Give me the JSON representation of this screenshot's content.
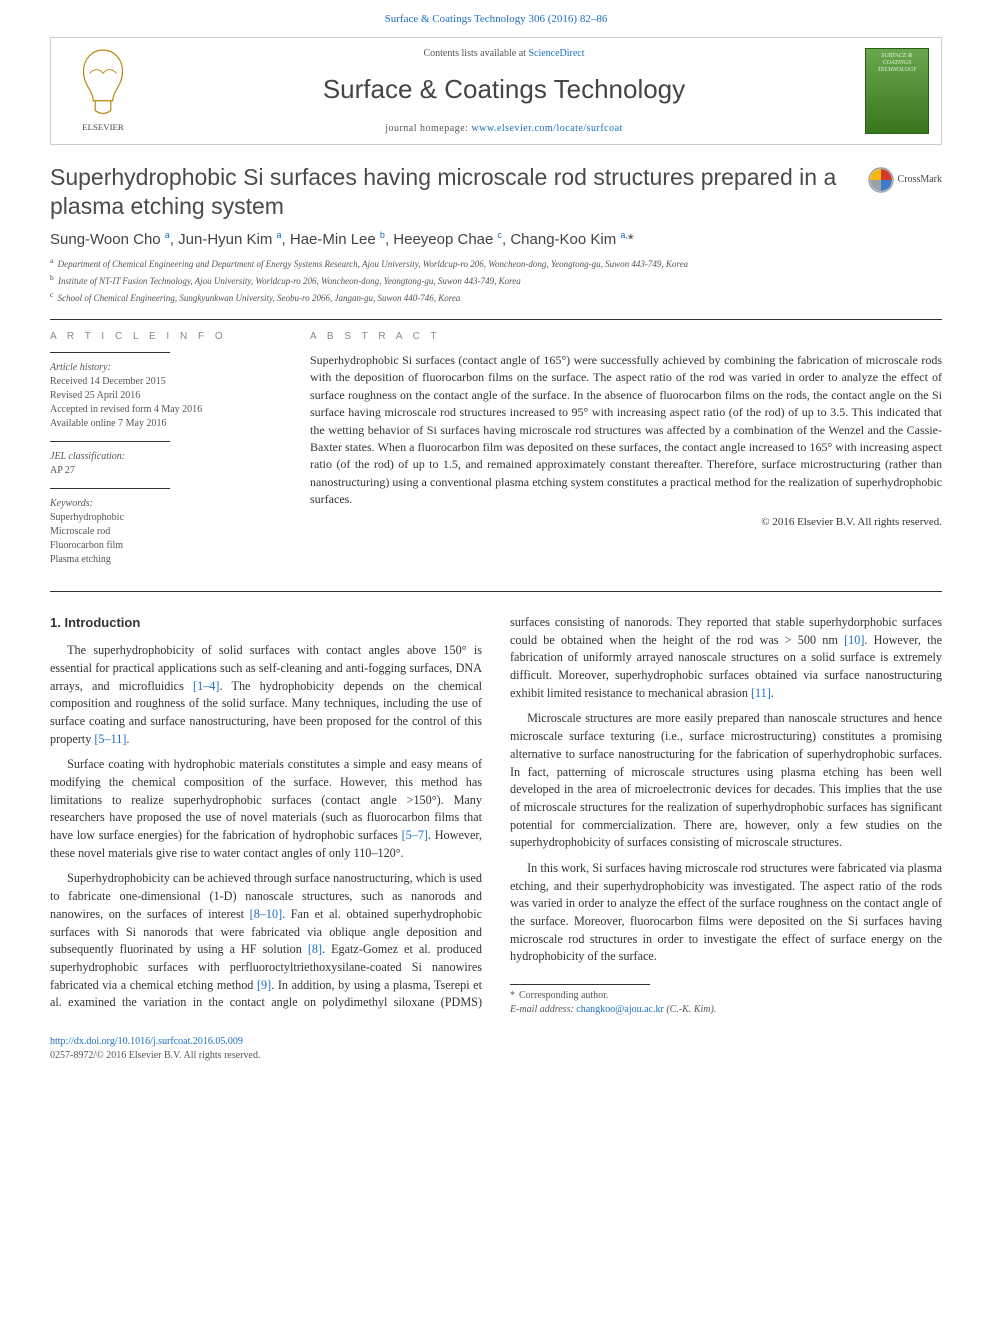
{
  "colors": {
    "link": "#1b6ec2",
    "text": "#333333",
    "muted": "#555555",
    "heading_gray": "#4a4a4a",
    "rule": "#333333",
    "cover_top": "#6aa84f",
    "cover_bottom": "#38761d",
    "elsevier_orange": "#e98300",
    "crossmark_yellow": "#f5b60a",
    "crossmark_red": "#d23a2e",
    "crossmark_blue": "#3e7cc2",
    "crossmark_gray": "#9aa0a6"
  },
  "top_link": {
    "citation": "Surface & Coatings Technology 306 (2016) 82–86",
    "href_label": "Surface & Coatings Technology 306 (2016) 82–86"
  },
  "header": {
    "contents_prefix": "Contents lists available at ",
    "contents_link": "ScienceDirect",
    "journal_title": "Surface & Coatings Technology",
    "homepage_prefix": "journal homepage: ",
    "homepage_link": "www.elsevier.com/locate/surfcoat",
    "cover_text": "SURFACE & COATINGS TECHNOLOGY"
  },
  "article": {
    "title": "Superhydrophobic Si surfaces having microscale rod structures prepared in a plasma etching system",
    "crossmark_label": "CrossMark",
    "authors_html": "Sung-Woon Cho <sup>a</sup>, Jun-Hyun Kim <sup>a</sup>, Hae-Min Lee <sup>b</sup>, Heeyeop Chae <sup>c</sup>, Chang-Koo Kim <sup>a,</sup><span class=\"star\">*</span>",
    "affiliations": [
      {
        "key": "a",
        "text": "Department of Chemical Engineering and Department of Energy Systems Research, Ajou University, Worldcup-ro 206, Woncheon-dong, Yeongtong-gu, Suwon 443-749, Korea"
      },
      {
        "key": "b",
        "text": "Institute of NT-IT Fusion Technology, Ajou University, Worldcup-ro 206, Woncheon-dong, Yeongtong-gu, Suwon 443-749, Korea"
      },
      {
        "key": "c",
        "text": "School of Chemical Engineering, Sungkyunkwan University, Seobu-ro 2066, Jangan-gu, Suwon 440-746, Korea"
      }
    ]
  },
  "info": {
    "heading": "a r t i c l e   i n f o",
    "history_label": "Article history:",
    "history": [
      "Received 14 December 2015",
      "Revised 25 April 2016",
      "Accepted in revised form 4 May 2016",
      "Available online 7 May 2016"
    ],
    "jel_label": "JEL classification:",
    "jel": "AP 27",
    "keywords_label": "Keywords:",
    "keywords": [
      "Superhydrophobic",
      "Microscale rod",
      "Fluorocarbon film",
      "Plasma etching"
    ]
  },
  "abstract": {
    "heading": "a b s t r a c t",
    "text": "Superhydrophobic Si surfaces (contact angle of 165°) were successfully achieved by combining the fabrication of microscale rods with the deposition of fluorocarbon films on the surface. The aspect ratio of the rod was varied in order to analyze the effect of surface roughness on the contact angle of the surface. In the absence of fluorocarbon films on the rods, the contact angle on the Si surface having microscale rod structures increased to 95° with increasing aspect ratio (of the rod) of up to 3.5. This indicated that the wetting behavior of Si surfaces having microscale rod structures was affected by a combination of the Wenzel and the Cassie-Baxter states. When a fluorocarbon film was deposited on these surfaces, the contact angle increased to 165° with increasing aspect ratio (of the rod) of up to 1.5, and remained approximately constant thereafter. Therefore, surface microstructuring (rather than nanostructuring) using a conventional plasma etching system constitutes a practical method for the realization of superhydrophobic surfaces.",
    "copyright": "© 2016 Elsevier B.V. All rights reserved."
  },
  "body": {
    "section_heading": "1. Introduction",
    "paragraphs": [
      "The superhydrophobicity of solid surfaces with contact angles above 150° is essential for practical applications such as self-cleaning and anti-fogging surfaces, DNA arrays, and microfluidics <a href=\"#\">[1–4]</a>. The hydrophobicity depends on the chemical composition and roughness of the solid surface. Many techniques, including the use of surface coating and surface nanostructuring, have been proposed for the control of this property <a href=\"#\">[5–11]</a>.",
      "Surface coating with hydrophobic materials constitutes a simple and easy means of modifying the chemical composition of the surface. However, this method has limitations to realize superhydrophobic surfaces (contact angle >150°). Many researchers have proposed the use of novel materials (such as fluorocarbon films that have low surface energies) for the fabrication of hydrophobic surfaces <a href=\"#\">[5–7]</a>. However, these novel materials give rise to water contact angles of only 110–120°.",
      "Superhydrophobicity can be achieved through surface nanostructuring, which is used to fabricate one-dimensional (1-D) nanoscale structures, such as nanorods and nanowires, on the surfaces of interest <a href=\"#\">[8–10]</a>. Fan et al. obtained superhydrophobic surfaces with Si nanorods that were fabricated via oblique angle deposition and subsequently fluorinated by using a HF solution <a href=\"#\">[8]</a>. Egatz-Gomez et al. produced superhydrophobic surfaces with perfluoroctyltriethoxysilane-coated Si nanowires fabricated via a chemical etching method <a href=\"#\">[9]</a>. In addition, by using a plasma, Tserepi et al. examined the variation in the contact angle on polydimethyl siloxane (PDMS) surfaces consisting of nanorods. They reported that stable superhydorphobic surfaces could be obtained when the height of the rod was > 500 nm <a href=\"#\">[10]</a>. However, the fabrication of uniformly arrayed nanoscale structures on a solid surface is extremely difficult. Moreover, superhydrophobic surfaces obtained via surface nanostructuring exhibit limited resistance to mechanical abrasion <a href=\"#\">[11]</a>.",
      "Microscale structures are more easily prepared than nanoscale structures and hence microscale surface texturing (i.e., surface microstructuring) constitutes a promising alternative to surface nanostructuring for the fabrication of superhydrophobic surfaces. In fact, patterning of microscale structures using plasma etching has been well developed in the area of microelectronic devices for decades. This implies that the use of microscale structures for the realization of superhydrophobic surfaces has significant potential for commercialization. There are, however, only a few studies on the superhydrophobicity of surfaces consisting of microscale structures.",
      "In this work, Si surfaces having microscale rod structures were fabricated via plasma etching, and their superhydrophobicity was investigated. The aspect ratio of the rods was varied in order to analyze the effect of the surface roughness on the contact angle of the surface. Moreover, fluorocarbon films were deposited on the Si surfaces having microscale rod structures in order to investigate the effect of surface energy on the hydrophobicity of the surface."
    ]
  },
  "footer": {
    "corresponding_label": "Corresponding author.",
    "email_label": "E-mail address:",
    "email": "changkoo@ajou.ac.kr",
    "email_suffix": "(C.-K. Kim).",
    "doi_link": "http://dx.doi.org/10.1016/j.surfcoat.2016.05.009",
    "issn_line": "0257-8972/© 2016 Elsevier B.V. All rights reserved."
  }
}
